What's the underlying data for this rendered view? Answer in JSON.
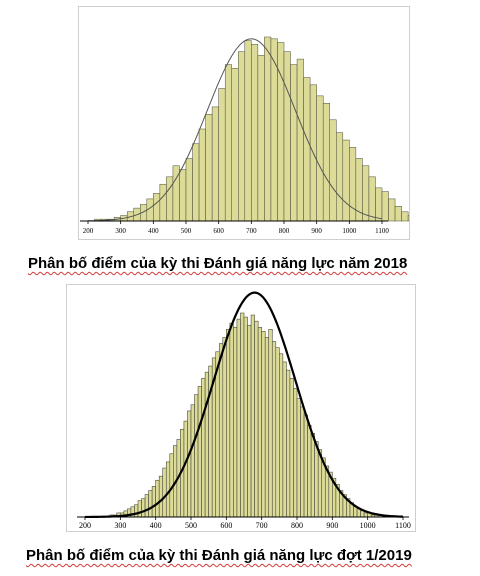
{
  "chart_data": [
    {
      "type": "bar",
      "subtype": "histogram",
      "title": "Phân bố điểm của kỳ thi Đánh giá năng lực năm  2018",
      "xlabel": "",
      "ylabel": "",
      "xlim": [
        200,
        1100
      ],
      "xticks": [
        "200",
        "300",
        "400",
        "500",
        "600",
        "700",
        "800",
        "900",
        "1000",
        "1100"
      ],
      "bin_width": 20,
      "bin_start": 220,
      "values": [
        1,
        1,
        1,
        2,
        3,
        5,
        7,
        9,
        12,
        15,
        20,
        24,
        30,
        28,
        34,
        42,
        50,
        58,
        62,
        72,
        85,
        83,
        92,
        98,
        96,
        90,
        100,
        99,
        97,
        92,
        85,
        88,
        78,
        74,
        68,
        64,
        55,
        48,
        44,
        40,
        34,
        30,
        24,
        18,
        16,
        12,
        8,
        5,
        3,
        2,
        1,
        1
      ],
      "curve": {
        "type": "normal",
        "mean": 700,
        "sd": 135
      },
      "bar_color": "#dcdc98",
      "curve_color": "#555555",
      "grid": false
    },
    {
      "type": "bar",
      "subtype": "histogram",
      "title": "Phân bố điểm của kỳ thi Đánh giá năng lực đợt 1/2019",
      "xlabel": "",
      "ylabel": "",
      "xlim": [
        200,
        1100
      ],
      "xticks": [
        "200",
        "300",
        "400",
        "500",
        "600",
        "700",
        "800",
        "900",
        "1000",
        "1100"
      ],
      "bin_width": 10,
      "bin_start": 270,
      "values": [
        1,
        1,
        2,
        2,
        3,
        4,
        5,
        6,
        8,
        9,
        11,
        13,
        15,
        18,
        20,
        24,
        27,
        31,
        35,
        38,
        43,
        47,
        52,
        55,
        60,
        64,
        68,
        71,
        74,
        78,
        81,
        85,
        88,
        92,
        95,
        93,
        97,
        100,
        98,
        94,
        99,
        96,
        93,
        91,
        88,
        92,
        86,
        83,
        80,
        76,
        72,
        68,
        63,
        58,
        54,
        50,
        45,
        41,
        37,
        33,
        29,
        25,
        22,
        19,
        16,
        13,
        11,
        9,
        7,
        5,
        4,
        3,
        2,
        2,
        1,
        1
      ],
      "curve": {
        "type": "normal",
        "mean": 680,
        "sd": 116
      },
      "bar_color": "#dcdc98",
      "curve_color": "#000000",
      "grid": false
    }
  ]
}
